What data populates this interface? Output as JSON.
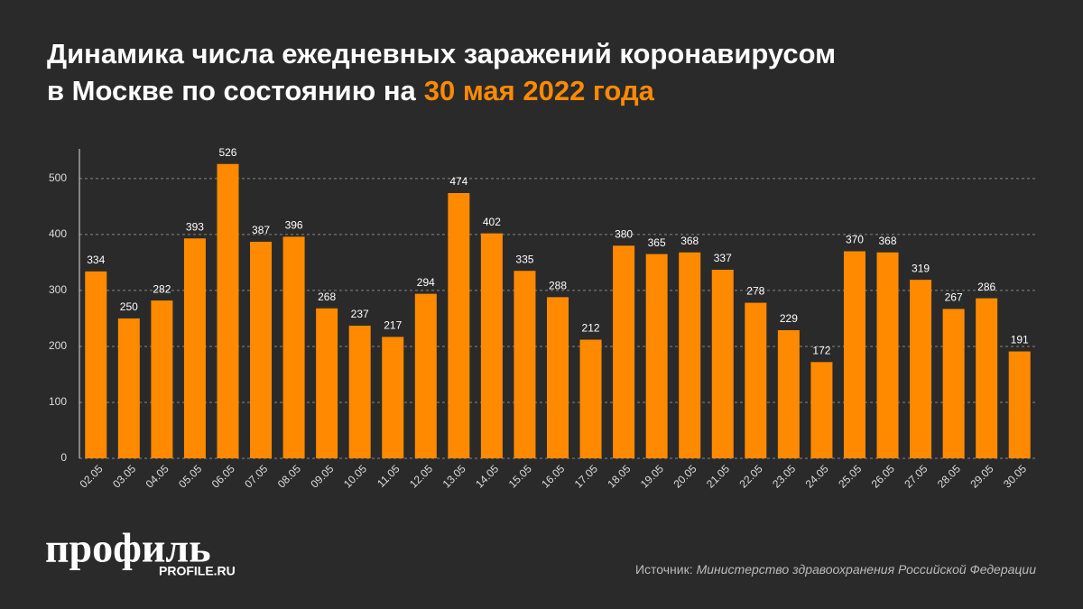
{
  "chart_data": {
    "type": "bar",
    "title": [
      "Динамика числа ежедневных заражений коронавирусом",
      "в Москве по состоянию на"
    ],
    "title_highlight": "30 мая 2022 года",
    "categories": [
      "02.05",
      "03.05",
      "04.05",
      "05.05",
      "06.05",
      "07.05",
      "08.05",
      "09.05",
      "10.05",
      "11.05",
      "12.05",
      "13.05",
      "14.05",
      "15.05",
      "16.05",
      "17.05",
      "18.05",
      "19.05",
      "20.05",
      "21.05",
      "22.05",
      "23.05",
      "24.05",
      "25.05",
      "26.05",
      "27.05",
      "28.05",
      "29.05",
      "30.05"
    ],
    "values": [
      334,
      250,
      282,
      393,
      526,
      387,
      396,
      268,
      237,
      217,
      294,
      474,
      402,
      335,
      288,
      212,
      380,
      365,
      368,
      337,
      278,
      229,
      172,
      370,
      368,
      319,
      267,
      286,
      191
    ],
    "color": "#ff8a00",
    "ylim": [
      0,
      553
    ],
    "yticks": [
      0,
      100,
      200,
      300,
      400,
      500
    ],
    "grid": true,
    "logo": "профиль",
    "logo_sub": "PROFILE.RU",
    "source_label": "Источник:",
    "source": "Министерство здравоохранения Российской Федерации"
  }
}
